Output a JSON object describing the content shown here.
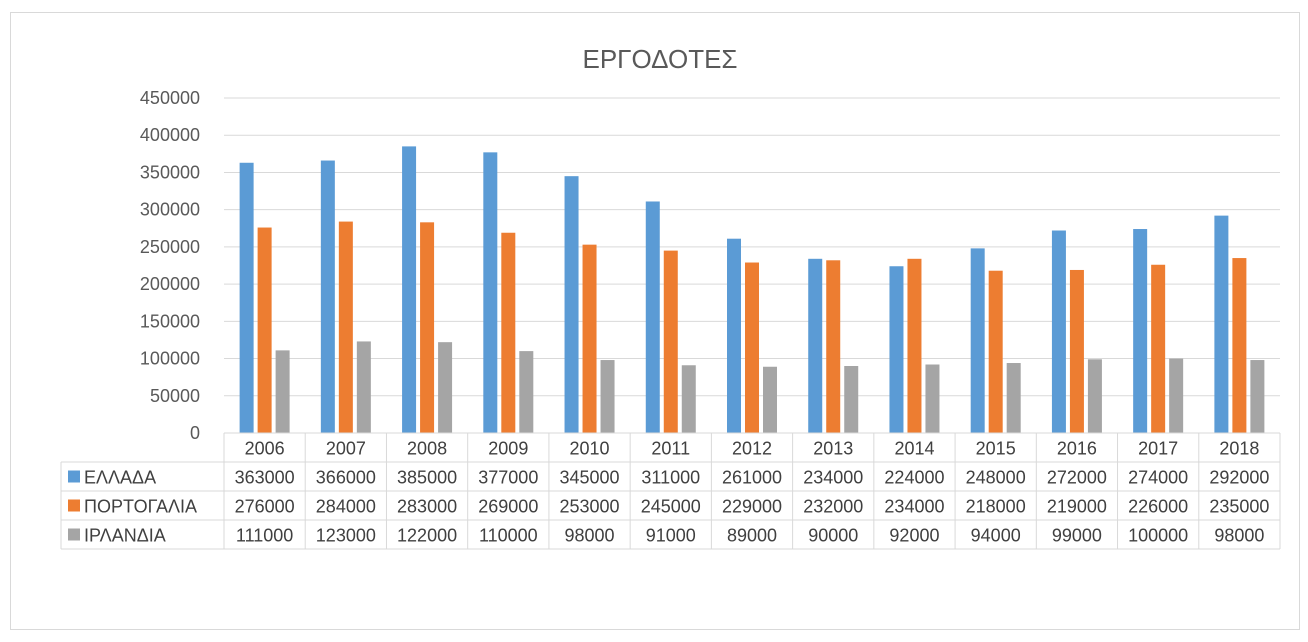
{
  "chart_data": {
    "type": "bar",
    "title": "ΕΡΓΟΔΟΤΕΣ",
    "categories": [
      "2006",
      "2007",
      "2008",
      "2009",
      "2010",
      "2011",
      "2012",
      "2013",
      "2014",
      "2015",
      "2016",
      "2017",
      "2018"
    ],
    "series": [
      {
        "name": "ΕΛΛΑΔΑ",
        "color": "#5b9bd5",
        "values": [
          363000,
          366000,
          385000,
          377000,
          345000,
          311000,
          261000,
          234000,
          224000,
          248000,
          272000,
          274000,
          292000
        ]
      },
      {
        "name": "ΠΟΡΤΟΓΑΛΙΑ",
        "color": "#ed7d31",
        "values": [
          276000,
          284000,
          283000,
          269000,
          253000,
          245000,
          229000,
          232000,
          234000,
          218000,
          219000,
          226000,
          235000
        ]
      },
      {
        "name": "ΙΡΛΑΝΔΙΑ",
        "color": "#a5a5a5",
        "values": [
          111000,
          123000,
          122000,
          110000,
          98000,
          91000,
          89000,
          90000,
          92000,
          94000,
          99000,
          100000,
          98000
        ]
      }
    ],
    "ylim": [
      0,
      450000
    ],
    "yticks": [
      0,
      50000,
      100000,
      150000,
      200000,
      250000,
      300000,
      350000,
      400000,
      450000
    ],
    "grid": true,
    "legend": "data-table"
  }
}
